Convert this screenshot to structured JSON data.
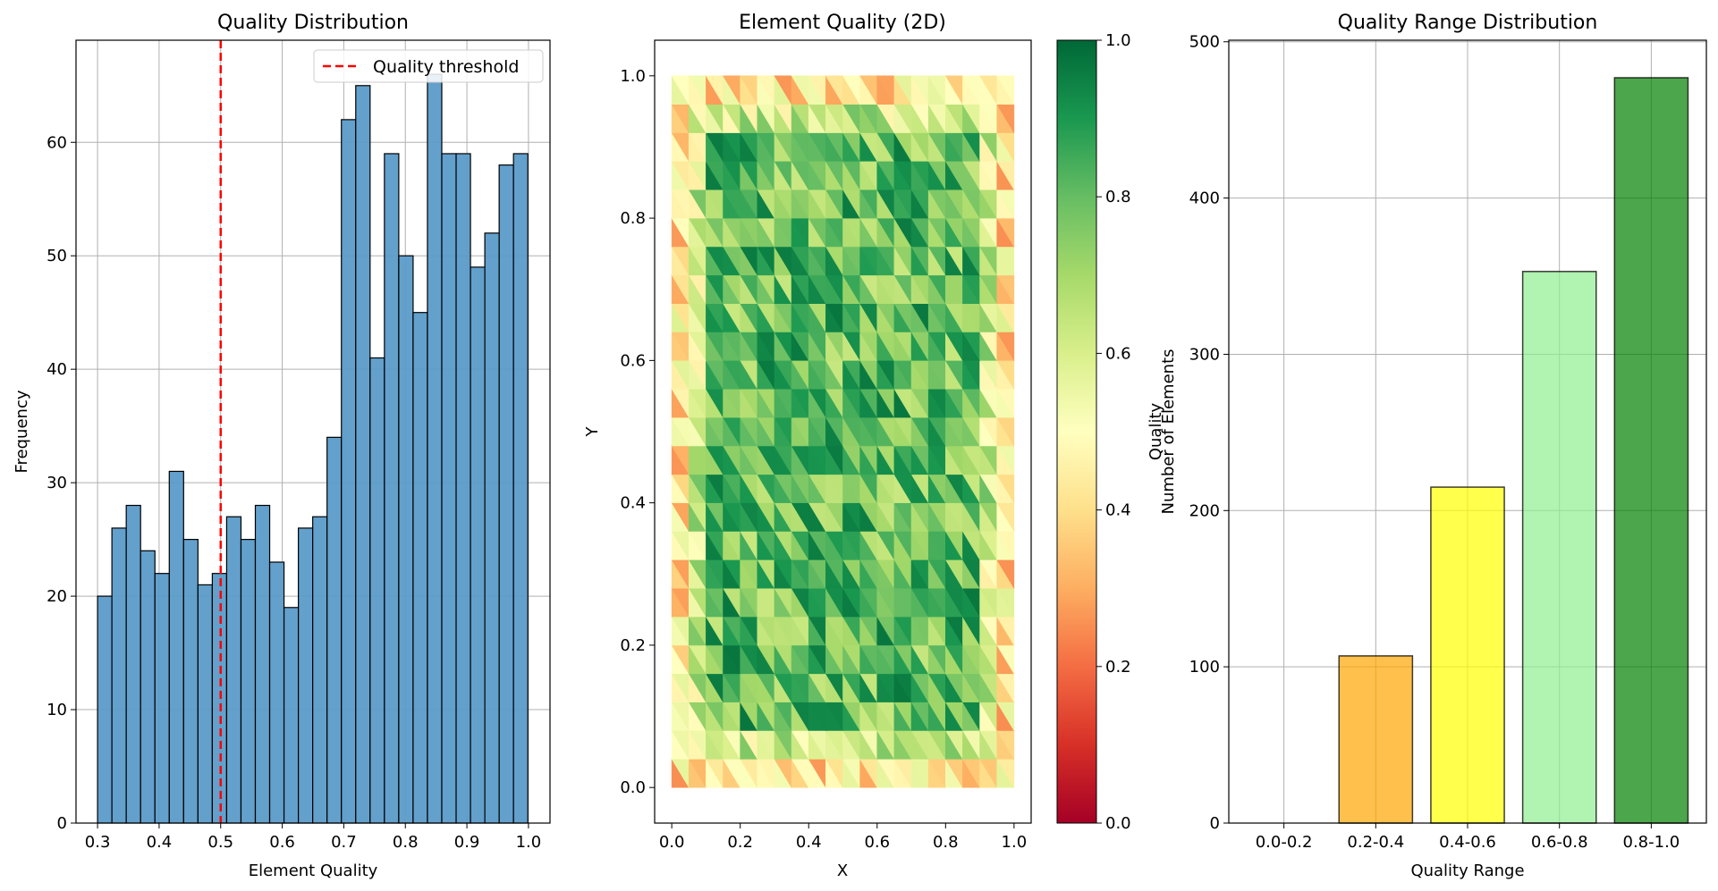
{
  "chart_data": [
    {
      "type": "bar",
      "title": "Quality Distribution",
      "xlabel": "Element Quality",
      "ylabel": "Frequency",
      "xlim": [
        0.265,
        1.035
      ],
      "ylim": [
        0,
        69
      ],
      "xticks": [
        "0.3",
        "0.4",
        "0.5",
        "0.6",
        "0.7",
        "0.8",
        "0.9",
        "1.0"
      ],
      "yticks": [
        "0",
        "10",
        "20",
        "30",
        "40",
        "50",
        "60"
      ],
      "grid": true,
      "bin_start": 0.3,
      "bin_width": 0.0233,
      "values": [
        20,
        26,
        28,
        24,
        22,
        31,
        25,
        21,
        22,
        27,
        25,
        28,
        23,
        19,
        26,
        27,
        34,
        62,
        65,
        41,
        59,
        50,
        45,
        66,
        59,
        59,
        49,
        52,
        58,
        59
      ],
      "bar_color": "#5b9bc9",
      "threshold": {
        "value": 0.5,
        "label": "Quality threshold",
        "color": "#ff0000"
      },
      "legend": "top-right"
    },
    {
      "type": "heatmap",
      "title": "Element Quality (2D)",
      "xlabel": "X",
      "ylabel": "Y",
      "xlim": [
        -0.05,
        1.05
      ],
      "ylim": [
        -0.05,
        1.05
      ],
      "xticks": [
        "0.0",
        "0.2",
        "0.4",
        "0.6",
        "0.8",
        "1.0"
      ],
      "yticks": [
        "0.0",
        "0.2",
        "0.4",
        "0.6",
        "0.8",
        "1.0"
      ],
      "grid": false,
      "nx": 20,
      "ny": 25,
      "colormap": "RdYlGn",
      "colorbar": {
        "label": "Quality",
        "range": [
          0,
          1
        ],
        "ticks": [
          "0.0",
          "0.2",
          "0.4",
          "0.6",
          "0.8",
          "1.0"
        ]
      }
    },
    {
      "type": "bar",
      "title": "Quality Range Distribution",
      "xlabel": "Quality Range",
      "ylabel": "Number of Elements",
      "categories": [
        "0.0-0.2",
        "0.2-0.4",
        "0.4-0.6",
        "0.6-0.8",
        "0.8-1.0"
      ],
      "values": [
        0,
        107,
        215,
        353,
        477
      ],
      "colors": [
        "#ff0000",
        "#ffa500",
        "#ffff00",
        "#90ee90",
        "#008000"
      ],
      "ylim": [
        0,
        501
      ],
      "yticks": [
        "0",
        "100",
        "200",
        "300",
        "400",
        "500"
      ],
      "grid": true
    }
  ]
}
